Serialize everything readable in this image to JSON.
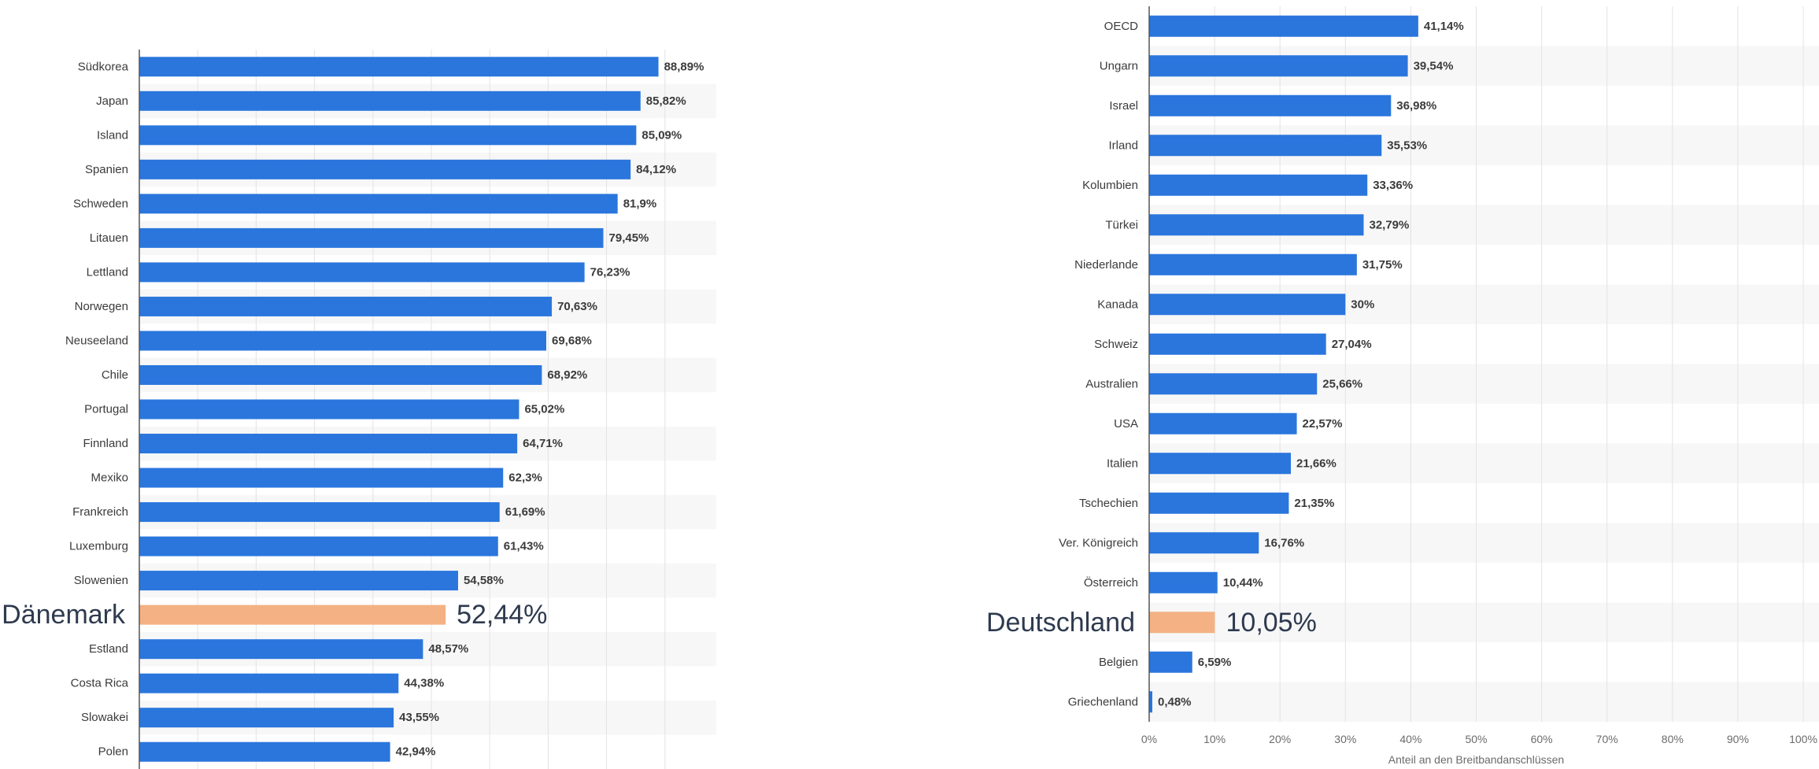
{
  "colors": {
    "bar": "#2a76dd",
    "highlight": "#f4b183",
    "stripe": "#f7f7f7",
    "grid": "#e3e3e3",
    "axis": "#555555"
  },
  "chart_data": [
    {
      "type": "bar",
      "orientation": "horizontal",
      "title": "",
      "xlabel": "",
      "ylabel": "",
      "xlim": [
        0,
        100
      ],
      "grid": true,
      "highlight_category": "Dänemark",
      "categories": [
        "Südkorea",
        "Japan",
        "Island",
        "Spanien",
        "Schweden",
        "Litauen",
        "Lettland",
        "Norwegen",
        "Neuseeland",
        "Chile",
        "Portugal",
        "Finnland",
        "Mexiko",
        "Frankreich",
        "Luxemburg",
        "Slowenien",
        "Dänemark",
        "Estland",
        "Costa Rica",
        "Slowakei",
        "Polen"
      ],
      "values": [
        88.89,
        85.82,
        85.09,
        84.12,
        81.9,
        79.45,
        76.23,
        70.63,
        69.68,
        68.92,
        65.02,
        64.71,
        62.3,
        61.69,
        61.43,
        54.58,
        52.44,
        48.57,
        44.38,
        43.55,
        42.94
      ],
      "value_labels": [
        "88,89%",
        "85,82%",
        "85,09%",
        "84,12%",
        "81,9%",
        "79,45%",
        "76,23%",
        "70,63%",
        "69,68%",
        "68,92%",
        "65,02%",
        "64,71%",
        "62,3%",
        "61,69%",
        "61,43%",
        "54,58%",
        "52,44%",
        "48,57%",
        "44,38%",
        "43,55%",
        "42,94%"
      ]
    },
    {
      "type": "bar",
      "orientation": "horizontal",
      "title": "",
      "xlabel": "Anteil an den Breitbandanschlüssen",
      "ylabel": "",
      "xlim": [
        0,
        100
      ],
      "grid": true,
      "highlight_category": "Deutschland",
      "categories": [
        "OECD",
        "Ungarn",
        "Israel",
        "Irland",
        "Kolumbien",
        "Türkei",
        "Niederlande",
        "Kanada",
        "Schweiz",
        "Australien",
        "USA",
        "Italien",
        "Tschechien",
        "Ver. Königreich",
        "Österreich",
        "Deutschland",
        "Belgien",
        "Griechenland"
      ],
      "values": [
        41.14,
        39.54,
        36.98,
        35.53,
        33.36,
        32.79,
        31.75,
        30,
        27.04,
        25.66,
        22.57,
        21.66,
        21.35,
        16.76,
        10.44,
        10.05,
        6.59,
        0.48
      ],
      "value_labels": [
        "41,14%",
        "39,54%",
        "36,98%",
        "35,53%",
        "33,36%",
        "32,79%",
        "31,75%",
        "30%",
        "27,04%",
        "25,66%",
        "22,57%",
        "21,66%",
        "21,35%",
        "16,76%",
        "10,44%",
        "10,05%",
        "6,59%",
        "0,48%"
      ],
      "x_ticks": [
        "0%",
        "10%",
        "20%",
        "30%",
        "40%",
        "50%",
        "60%",
        "70%",
        "80%",
        "90%",
        "100%"
      ]
    }
  ]
}
